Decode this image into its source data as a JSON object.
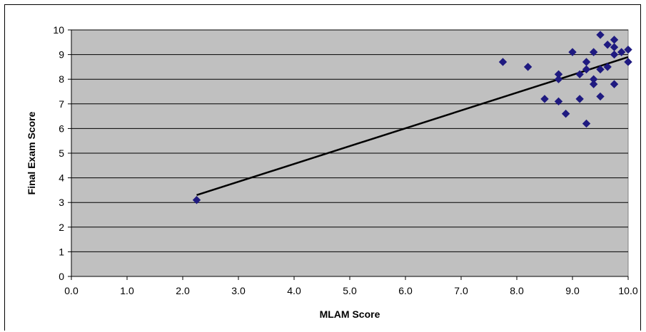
{
  "chart_data": {
    "type": "scatter",
    "title": "",
    "xlabel": "MLAM Score",
    "ylabel": "Final Exam Score",
    "xlim": [
      0,
      10
    ],
    "ylim": [
      0,
      10
    ],
    "x_ticks": [
      "0.0",
      "1.0",
      "2.0",
      "3.0",
      "4.0",
      "5.0",
      "6.0",
      "7.0",
      "8.0",
      "9.0",
      "10.0"
    ],
    "y_ticks": [
      "0",
      "1",
      "2",
      "3",
      "4",
      "5",
      "6",
      "7",
      "8",
      "9",
      "10"
    ],
    "grid": "horizontal",
    "legend": "none",
    "colors": {
      "plot_background": "#c0c0c0",
      "marker": "#1f1a80",
      "trendline": "#000000",
      "gridline": "#000000"
    },
    "series": [
      {
        "marker": "diamond",
        "x": [
          2.25,
          7.75,
          8.2,
          8.5,
          8.75,
          8.75,
          8.75,
          8.88,
          9.0,
          9.13,
          9.13,
          9.25,
          9.25,
          9.25,
          9.38,
          9.38,
          9.38,
          9.5,
          9.5,
          9.5,
          9.63,
          9.63,
          9.75,
          9.75,
          9.75,
          9.75,
          9.88,
          10.0,
          10.0
        ],
        "y": [
          3.1,
          8.7,
          8.5,
          7.2,
          8.2,
          8.0,
          7.1,
          6.6,
          9.1,
          8.2,
          7.2,
          8.7,
          8.4,
          6.2,
          9.1,
          8.0,
          7.8,
          9.8,
          8.4,
          7.3,
          9.4,
          8.5,
          9.6,
          9.3,
          9.0,
          7.8,
          9.1,
          9.2,
          8.7
        ]
      }
    ],
    "trendline": {
      "type": "linear",
      "x": [
        2.25,
        10.0
      ],
      "y": [
        3.3,
        8.9
      ]
    }
  }
}
